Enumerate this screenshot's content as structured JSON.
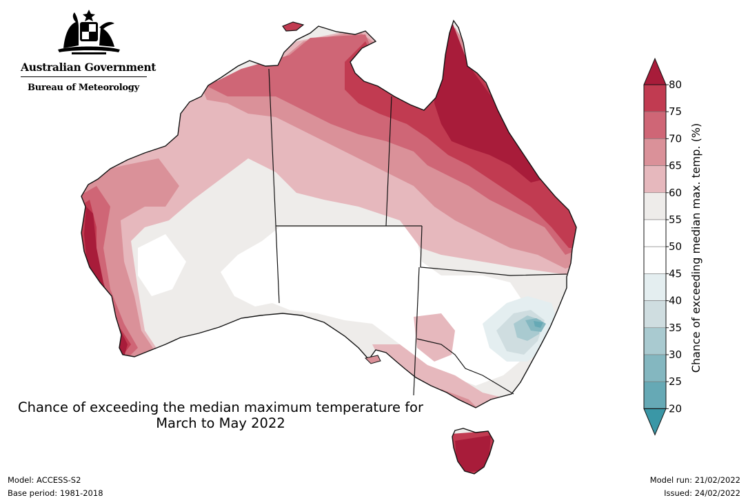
{
  "header": {
    "org_name": "Australian Government",
    "agency_name": "Bureau of Meteorology",
    "crest_icon": "coat-of-arms-icon"
  },
  "map": {
    "title_line1": "Chance of exceeding the median maximum temperature for",
    "title_line2": "March to May 2022",
    "region": "Australia",
    "state_borders": true
  },
  "colorbar": {
    "label": "Chance of exceeding median max. temp. (%)",
    "ticks": [
      "80",
      "75",
      "70",
      "65",
      "60",
      "55",
      "50",
      "45",
      "40",
      "35",
      "30",
      "25",
      "20"
    ],
    "bins": [
      {
        "range": "over 80",
        "color": "#a81c3a"
      },
      {
        "range": "75-80",
        "color": "#c13b51"
      },
      {
        "range": "70-75",
        "color": "#cf6676"
      },
      {
        "range": "65-70",
        "color": "#da9199"
      },
      {
        "range": "60-65",
        "color": "#e6b8bd"
      },
      {
        "range": "55-60",
        "color": "#eeecea"
      },
      {
        "range": "50-55",
        "color": "#ffffff"
      },
      {
        "range": "45-50",
        "color": "#ffffff"
      },
      {
        "range": "40-45",
        "color": "#e4eef0"
      },
      {
        "range": "35-40",
        "color": "#cfdde0"
      },
      {
        "range": "30-35",
        "color": "#a9cad0"
      },
      {
        "range": "25-30",
        "color": "#84b7c0"
      },
      {
        "range": "20-25",
        "color": "#66a9b5"
      },
      {
        "range": "under 20",
        "color": "#3a97a6"
      }
    ]
  },
  "footer": {
    "model": "Model: ACCESS-S2",
    "base_period": "Base period: 1981-2018",
    "model_run": "Model run: 21/02/2022",
    "issued": "Issued: 24/02/2022"
  }
}
